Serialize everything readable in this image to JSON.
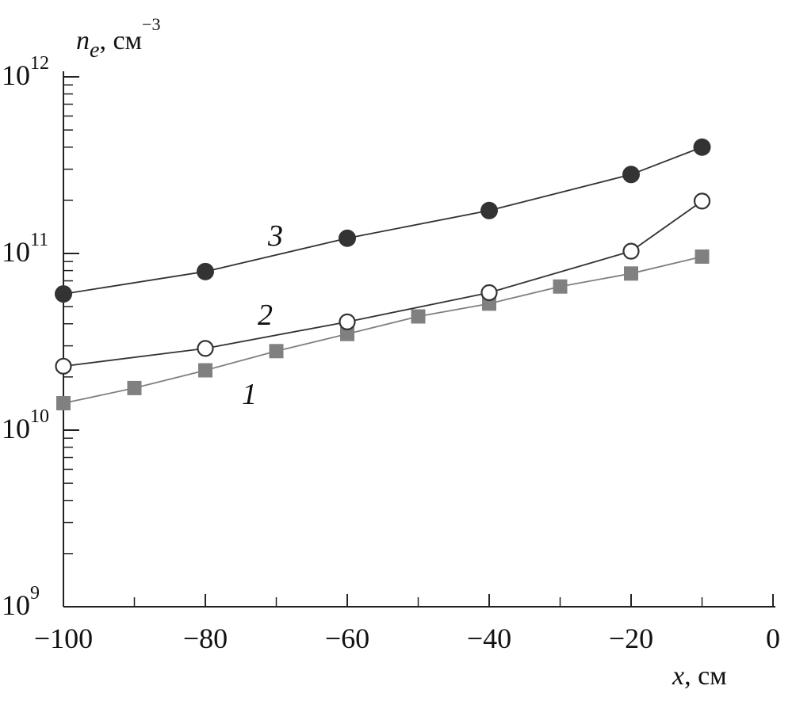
{
  "chart_data": {
    "type": "line",
    "log_y": true,
    "xlabel": {
      "symbol": "x",
      "unit": ", см"
    },
    "ylabel": {
      "symbol": "n",
      "subscript": "e",
      "unit": ", см",
      "exponent": "−3"
    },
    "xlim": [
      -100,
      0
    ],
    "xticks": [
      {
        "value": -100,
        "label": "−100"
      },
      {
        "value": -80,
        "label": "−80"
      },
      {
        "value": -60,
        "label": "−60"
      },
      {
        "value": -40,
        "label": "−40"
      },
      {
        "value": -20,
        "label": "−20"
      },
      0
    ],
    "xticks_minor": [
      -90,
      -70,
      -50,
      -30,
      -10
    ],
    "ylim": [
      1000000000,
      1000000000000
    ],
    "yticks": [
      {
        "value": 1000000000,
        "label": "10",
        "exponent": "9"
      },
      {
        "value": 10000000000,
        "label": "10",
        "exponent": "10"
      },
      {
        "value": 100000000000,
        "label": "10",
        "exponent": "11"
      },
      {
        "value": 1000000000000,
        "label": "10",
        "exponent": "12"
      }
    ],
    "yticks_minor": [
      2000000000,
      3000000000,
      4000000000,
      5000000000,
      6000000000,
      7000000000,
      8000000000,
      9000000000,
      20000000000,
      30000000000,
      40000000000,
      50000000000,
      60000000000,
      70000000000,
      80000000000,
      90000000000,
      200000000000,
      300000000000,
      400000000000,
      500000000000,
      600000000000,
      700000000000,
      800000000000,
      900000000000
    ],
    "series": [
      {
        "name": "1",
        "color": "#808080",
        "marker": "square",
        "x": [
          -100,
          -90,
          -80,
          -70,
          -60,
          -50,
          -40,
          -30,
          -20,
          -10
        ],
        "values": [
          14200000000,
          17300000000,
          21800000000,
          28000000000,
          35000000000,
          44000000000,
          52000000000,
          65000000000,
          77000000000,
          96000000000
        ]
      },
      {
        "name": "2",
        "color": "#333333",
        "marker": "open-circle",
        "x": [
          -100,
          -80,
          -60,
          -40,
          -20,
          -10
        ],
        "values": [
          23000000000,
          29000000000,
          41000000000,
          60000000000,
          103000000000,
          198000000000
        ]
      },
      {
        "name": "3",
        "color": "#333333",
        "marker": "filled-circle",
        "x": [
          -100,
          -80,
          -60,
          -40,
          -20,
          -10
        ],
        "values": [
          59000000000,
          79000000000,
          122000000000,
          175000000000,
          280000000000,
          400000000000
        ]
      }
    ]
  }
}
